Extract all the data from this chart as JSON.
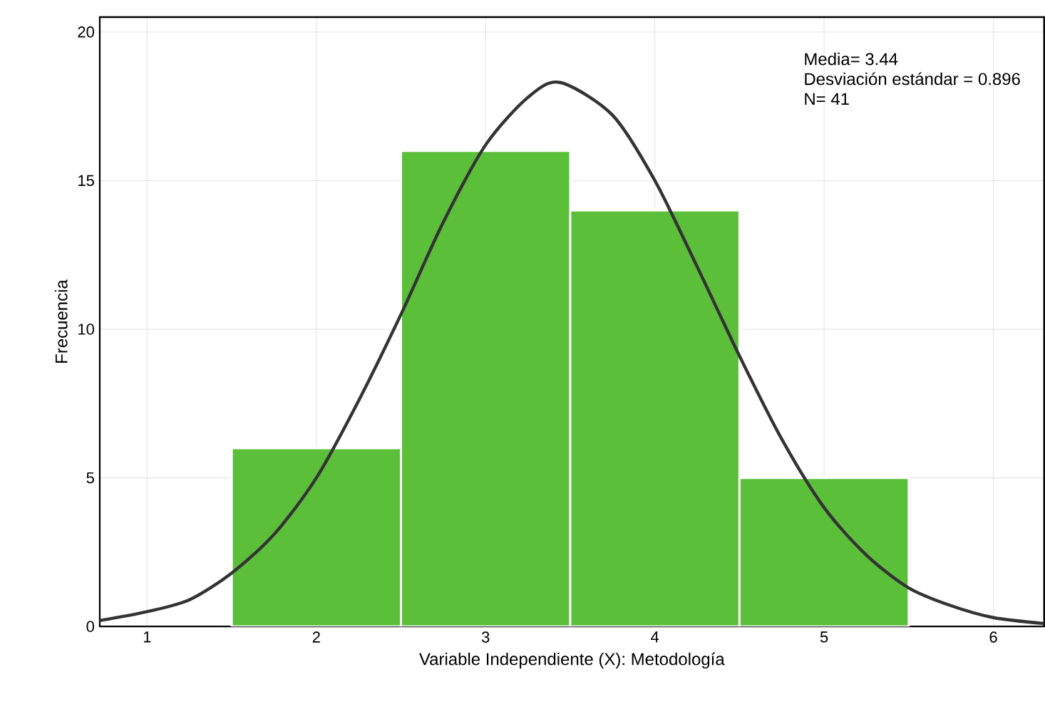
{
  "chart_data": {
    "type": "histogram",
    "xlabel": "Variable Independiente (X): Metodología",
    "ylabel": "Frecuencia",
    "xlim": [
      0.72,
      6.3
    ],
    "ylim": [
      0,
      20.5
    ],
    "xticks": [
      1,
      2,
      3,
      4,
      5,
      6
    ],
    "yticks": [
      0,
      5,
      10,
      15,
      20
    ],
    "grid": true,
    "annotations": [
      "Media= 3.44",
      "Desviación estándar = 0.896",
      "N= 41"
    ],
    "series": [
      {
        "color": "#5bbf3a",
        "bins": [
          1.5,
          2.5,
          3.5,
          4.5,
          5.5
        ],
        "values": [
          6,
          16,
          14,
          5
        ]
      },
      {
        "type": "line",
        "color": "#333333",
        "x": [
          0.72,
          1.0,
          1.25,
          1.5,
          1.75,
          2.0,
          2.25,
          2.5,
          2.75,
          3.0,
          3.25,
          3.44,
          3.75,
          4.0,
          4.25,
          4.5,
          4.75,
          5.0,
          5.25,
          5.5,
          5.75,
          6.0,
          6.3
        ],
        "values": [
          0.2,
          0.5,
          0.9,
          1.8,
          3.1,
          5.0,
          7.6,
          10.5,
          13.6,
          16.2,
          17.8,
          18.3,
          17.2,
          15.0,
          12.1,
          9.1,
          6.3,
          4.0,
          2.4,
          1.3,
          0.7,
          0.3,
          0.1
        ]
      }
    ]
  }
}
